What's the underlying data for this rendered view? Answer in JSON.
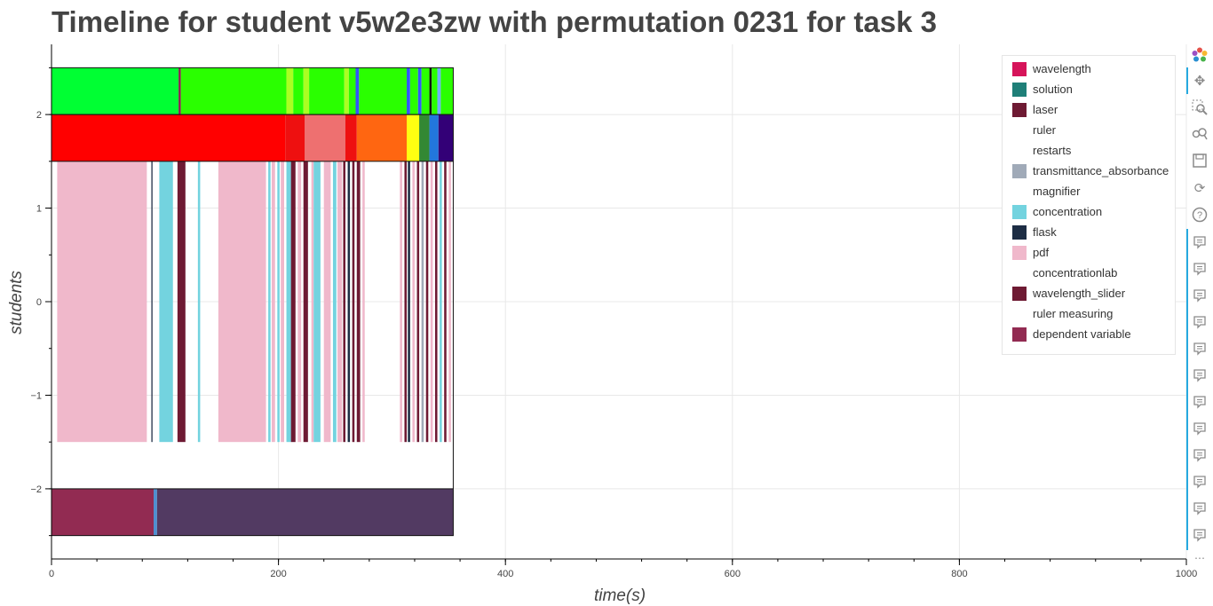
{
  "chart_data": {
    "type": "timeline",
    "title": "Timeline for student v5w2e3zw with permutation 0231 for task 3",
    "xlabel": "time(s)",
    "ylabel": "students",
    "xlim": [
      0,
      1000
    ],
    "ylim": [
      -2.75,
      2.75
    ],
    "x_ticks": [
      0,
      200,
      400,
      600,
      800,
      1000
    ],
    "x_tick_labels": [
      "0",
      "200",
      "400",
      "600",
      "800",
      "1000"
    ],
    "y_ticks": [
      -2,
      -1,
      0,
      1,
      2
    ],
    "y_tick_labels": [
      "−2",
      "−1",
      "0",
      "1",
      "2"
    ],
    "grid": true,
    "legend_position": "top-right",
    "legend": [
      {
        "label": "wavelength",
        "color": "#d6145a"
      },
      {
        "label": "solution",
        "color": "#1f7f78"
      },
      {
        "label": "laser",
        "color": "#6e1a33"
      },
      {
        "label": "ruler",
        "color": ""
      },
      {
        "label": "restarts",
        "color": ""
      },
      {
        "label": "transmittance_absorbance",
        "color": "#a0aab8"
      },
      {
        "label": "magnifier",
        "color": ""
      },
      {
        "label": "concentration",
        "color": "#73d3df"
      },
      {
        "label": "flask",
        "color": "#1d2d44"
      },
      {
        "label": "pdf",
        "color": "#f0b8cb"
      },
      {
        "label": "concentrationlab",
        "color": ""
      },
      {
        "label": "wavelength_slider",
        "color": "#6e1a33"
      },
      {
        "label": "ruler measuring",
        "color": ""
      },
      {
        "label": "dependent variable",
        "color": "#922b52"
      }
    ],
    "rows": [
      {
        "y_range": [
          2,
          2.5
        ],
        "segments": [
          {
            "start": 0,
            "end": 112,
            "color": "#00ff33"
          },
          {
            "start": 112,
            "end": 114,
            "color": "#8a1a4a"
          },
          {
            "start": 114,
            "end": 207,
            "color": "#2aff00"
          },
          {
            "start": 207,
            "end": 213,
            "color": "#aaff22"
          },
          {
            "start": 213,
            "end": 222,
            "color": "#2aff00"
          },
          {
            "start": 222,
            "end": 227,
            "color": "#aaff22"
          },
          {
            "start": 227,
            "end": 258,
            "color": "#2aff00"
          },
          {
            "start": 258,
            "end": 262,
            "color": "#aaff22"
          },
          {
            "start": 262,
            "end": 268,
            "color": "#2aff00"
          },
          {
            "start": 268,
            "end": 271,
            "color": "#3355ff"
          },
          {
            "start": 271,
            "end": 313,
            "color": "#2aff00"
          },
          {
            "start": 313,
            "end": 316,
            "color": "#3355ff"
          },
          {
            "start": 316,
            "end": 323,
            "color": "#2aff00"
          },
          {
            "start": 323,
            "end": 326,
            "color": "#3355ff"
          },
          {
            "start": 326,
            "end": 333,
            "color": "#2aff00"
          },
          {
            "start": 333,
            "end": 335,
            "color": "#111111"
          },
          {
            "start": 335,
            "end": 340,
            "color": "#2aff00"
          },
          {
            "start": 340,
            "end": 343,
            "color": "#6fb0ff"
          },
          {
            "start": 343,
            "end": 354,
            "color": "#2aff00"
          }
        ]
      },
      {
        "y_range": [
          1.5,
          2
        ],
        "segments": [
          {
            "start": 0,
            "end": 206,
            "color": "#ff0000"
          },
          {
            "start": 206,
            "end": 223,
            "color": "#ee1010"
          },
          {
            "start": 223,
            "end": 259,
            "color": "#ee7070"
          },
          {
            "start": 259,
            "end": 269,
            "color": "#ee1010"
          },
          {
            "start": 269,
            "end": 313,
            "color": "#ff6611"
          },
          {
            "start": 313,
            "end": 324,
            "color": "#ffff11"
          },
          {
            "start": 324,
            "end": 333,
            "color": "#338833"
          },
          {
            "start": 333,
            "end": 341,
            "color": "#2277dd"
          },
          {
            "start": 341,
            "end": 354,
            "color": "#330077"
          }
        ]
      },
      {
        "y_range": [
          -1.5,
          1.5
        ],
        "segments": [
          {
            "start": 5,
            "end": 84,
            "color": "#f0b8cb"
          },
          {
            "start": 88,
            "end": 89,
            "color": "#1d2d44"
          },
          {
            "start": 95,
            "end": 107,
            "color": "#73d3df"
          },
          {
            "start": 111,
            "end": 118,
            "color": "#6e1a33"
          },
          {
            "start": 129,
            "end": 131,
            "color": "#73d3df"
          },
          {
            "start": 147,
            "end": 189,
            "color": "#f0b8cb"
          },
          {
            "start": 191,
            "end": 193,
            "color": "#73d3df"
          },
          {
            "start": 194,
            "end": 197,
            "color": "#f0b8cb"
          },
          {
            "start": 199,
            "end": 201,
            "color": "#73d3df"
          },
          {
            "start": 202,
            "end": 205,
            "color": "#f0b8cb"
          },
          {
            "start": 207,
            "end": 211,
            "color": "#73d3df"
          },
          {
            "start": 211,
            "end": 215,
            "color": "#6e1a33"
          },
          {
            "start": 217,
            "end": 220,
            "color": "#f0b8cb"
          },
          {
            "start": 222,
            "end": 226,
            "color": "#6e1a33"
          },
          {
            "start": 229,
            "end": 231,
            "color": "#f0b8cb"
          },
          {
            "start": 231,
            "end": 237,
            "color": "#73d3df"
          },
          {
            "start": 240,
            "end": 246,
            "color": "#f0b8cb"
          },
          {
            "start": 248,
            "end": 251,
            "color": "#73d3df"
          },
          {
            "start": 252,
            "end": 256,
            "color": "#f0b8cb"
          },
          {
            "start": 257,
            "end": 259,
            "color": "#6e1a33"
          },
          {
            "start": 261,
            "end": 263,
            "color": "#1d2d44"
          },
          {
            "start": 265,
            "end": 267,
            "color": "#6e1a33"
          },
          {
            "start": 269,
            "end": 272,
            "color": "#6e1a33"
          },
          {
            "start": 274,
            "end": 276,
            "color": "#f0b8cb"
          },
          {
            "start": 307,
            "end": 309,
            "color": "#f0b8cb"
          },
          {
            "start": 311,
            "end": 313,
            "color": "#6e1a33"
          },
          {
            "start": 314,
            "end": 316,
            "color": "#1d2d44"
          },
          {
            "start": 318,
            "end": 320,
            "color": "#f0b8cb"
          },
          {
            "start": 322,
            "end": 324,
            "color": "#6e1a33"
          },
          {
            "start": 326,
            "end": 328,
            "color": "#a0aab8"
          },
          {
            "start": 330,
            "end": 332,
            "color": "#6e1a33"
          },
          {
            "start": 334,
            "end": 336,
            "color": "#f0b8cb"
          },
          {
            "start": 338,
            "end": 340,
            "color": "#6e1a33"
          },
          {
            "start": 342,
            "end": 344,
            "color": "#73d3df"
          },
          {
            "start": 346,
            "end": 348,
            "color": "#6e1a33"
          },
          {
            "start": 350,
            "end": 352,
            "color": "#f0b8cb"
          }
        ]
      },
      {
        "y_range": [
          -2.5,
          -2
        ],
        "segments": [
          {
            "start": 0,
            "end": 90,
            "color": "#922b52"
          },
          {
            "start": 90,
            "end": 93,
            "color": "#4e8fd0"
          },
          {
            "start": 93,
            "end": 354,
            "color": "#523a62"
          }
        ]
      }
    ],
    "outline_x_range": [
      0,
      354
    ],
    "outline_y_range": [
      -2.5,
      2.5
    ]
  }
}
